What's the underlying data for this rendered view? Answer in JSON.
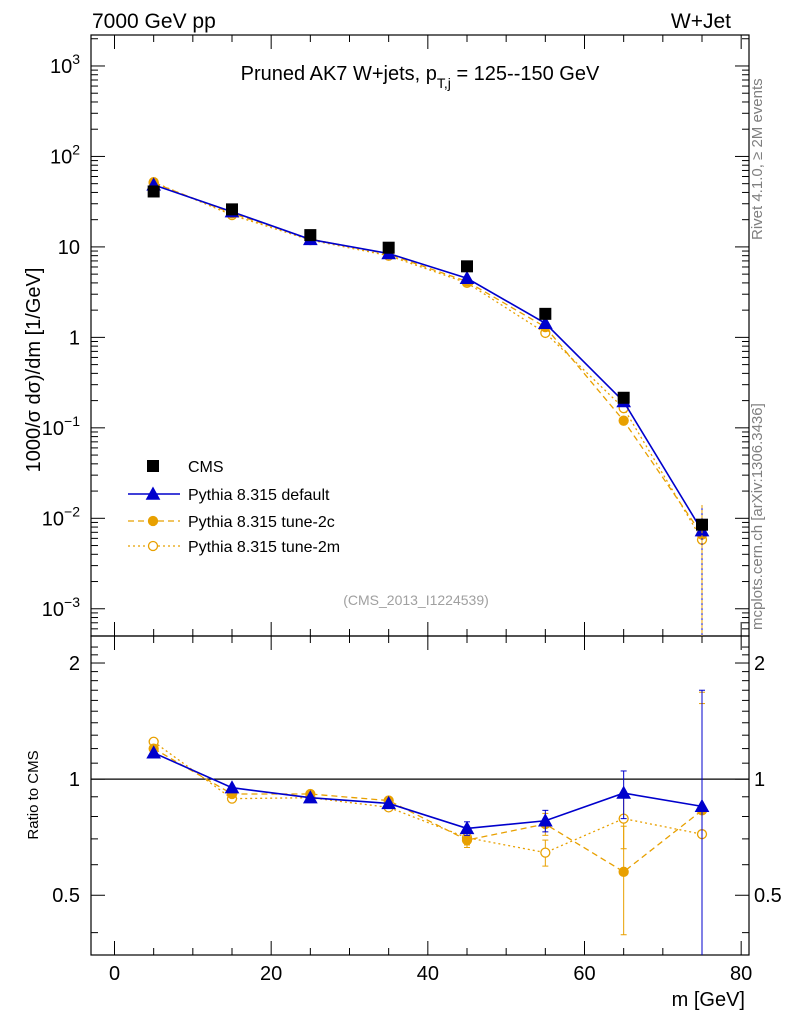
{
  "header": {
    "left": "7000 GeV pp",
    "right": "W+Jet"
  },
  "side": {
    "rivet": "Rivet 4.1.0, ≥ 2M events",
    "mcplots": "mcplots.cern.ch [arXiv:1306.3436]"
  },
  "chart_data": {
    "type": "line",
    "title_main": "Pruned AK7 W+jets, p",
    "title_sub": "T,j",
    "title_tail": " = 125--150 GeV",
    "watermark": "(CMS_2013_I1224539)",
    "ylabel": "1000/σ  dσ)/dm [1/GeV]",
    "ratio_ylabel": "Ratio to CMS",
    "xlabel": "m [GeV]",
    "xlim": [
      -3,
      81
    ],
    "ylim": [
      0.0005,
      2200
    ],
    "ratio_ylim": [
      0.35,
      2.35
    ],
    "x_ticks": [
      "0",
      "20",
      "40",
      "60",
      "80"
    ],
    "y_ticks": [
      "10",
      "10",
      "10",
      "1",
      "10",
      "10",
      "10"
    ],
    "y_tick_exps": [
      "3",
      "2",
      "",
      "",
      "−1",
      "−2",
      "−3"
    ],
    "ratio_ticks": [
      "2",
      "1",
      "0.5"
    ],
    "x": [
      5,
      15,
      25,
      35,
      45,
      55,
      65,
      75
    ],
    "data": {
      "name": "CMS",
      "values": [
        41,
        26,
        13.5,
        9.8,
        6.1,
        1.82,
        0.215,
        0.0085
      ]
    },
    "series": [
      {
        "name": "Pythia 8.315 default",
        "color": "#0000cc",
        "values": [
          48.5,
          24.5,
          12.1,
          8.45,
          4.5,
          1.43,
          0.195,
          0.0073
        ],
        "ratio": [
          1.17,
          0.95,
          0.895,
          0.865,
          0.745,
          0.78,
          0.92,
          0.85
        ],
        "ratio_err": [
          0.02,
          0.02,
          0.02,
          0.02,
          0.03,
          0.05,
          0.13,
          0.85
        ]
      },
      {
        "name": "Pythia 8.315 tune-2c",
        "color": "#e8a000",
        "values": [
          51,
          23.5,
          12.2,
          8.3,
          4.15,
          1.3,
          0.12,
          0.0066
        ],
        "ratio": [
          1.2,
          0.915,
          0.915,
          0.88,
          0.695,
          0.765,
          0.575,
          0.83
        ],
        "ratio_err": [
          0.02,
          0.02,
          0.02,
          0.02,
          0.03,
          0.05,
          0.18,
          0.85
        ]
      },
      {
        "name": "Pythia 8.315 tune-2m",
        "color": "#e8a000",
        "values": [
          52,
          22.5,
          11.9,
          8.0,
          4.0,
          1.12,
          0.165,
          0.0058
        ],
        "ratio": [
          1.25,
          0.89,
          0.895,
          0.845,
          0.705,
          0.645,
          0.79,
          0.72
        ],
        "ratio_err": [
          0.02,
          0.02,
          0.02,
          0.02,
          0.03,
          0.05,
          0.13,
          0.85
        ]
      }
    ]
  }
}
